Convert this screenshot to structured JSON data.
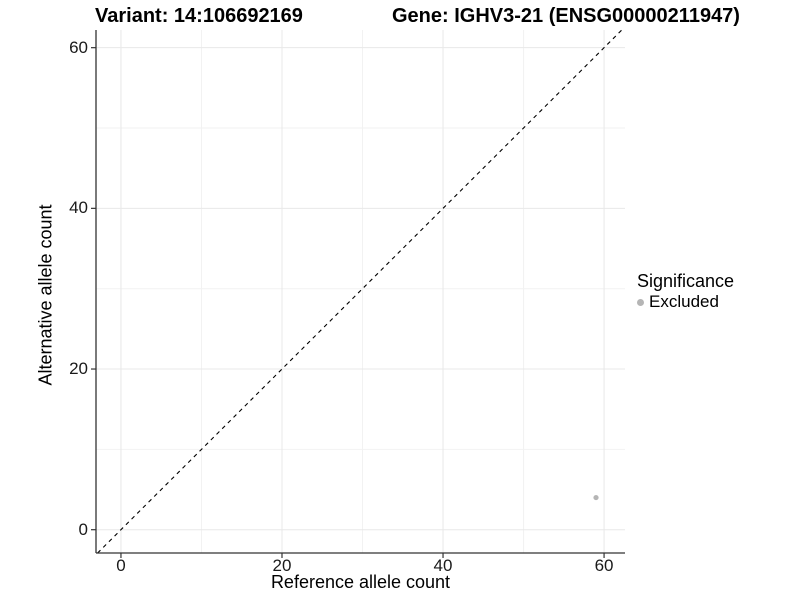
{
  "header": {
    "variant_title": "Variant: 14:106692169",
    "gene_title": "Gene: IGHV3-21 (ENSG00000211947)"
  },
  "axes": {
    "x_label": "Reference allele count",
    "y_label": "Alternative allele count"
  },
  "legend": {
    "title": "Significance",
    "items": [
      {
        "label": "Excluded",
        "color": "#b5b5b5"
      }
    ]
  },
  "colors": {
    "background": "#ffffff",
    "grid_major": "#e8e8e8",
    "grid_minor": "#f2f2f2",
    "axis_line": "#333333",
    "tick_mark": "#333333",
    "reference_line": "#000000",
    "point": "#b5b5b5",
    "text": "#000000"
  },
  "chart_data": {
    "type": "scatter",
    "title_left": "Variant: 14:106692169",
    "title_right": "Gene: IGHV3-21 (ENSG00000211947)",
    "xlabel": "Reference allele count",
    "ylabel": "Alternative allele count",
    "x_ticks": [
      0,
      20,
      40,
      60
    ],
    "x_minor_ticks": [
      10,
      30,
      50
    ],
    "y_ticks": [
      0,
      20,
      40,
      60
    ],
    "y_minor_ticks": [
      10,
      30,
      50
    ],
    "xlim": [
      -3.1,
      62.6
    ],
    "ylim": [
      -2.9,
      62.2
    ],
    "grid": true,
    "legend_position": "right",
    "reference_line": {
      "kind": "identity",
      "slope": 1,
      "intercept": 0,
      "style": "dashed"
    },
    "series": [
      {
        "name": "Excluded",
        "color": "#b5b5b5",
        "points": [
          {
            "x": 59,
            "y": 4
          }
        ]
      }
    ]
  }
}
